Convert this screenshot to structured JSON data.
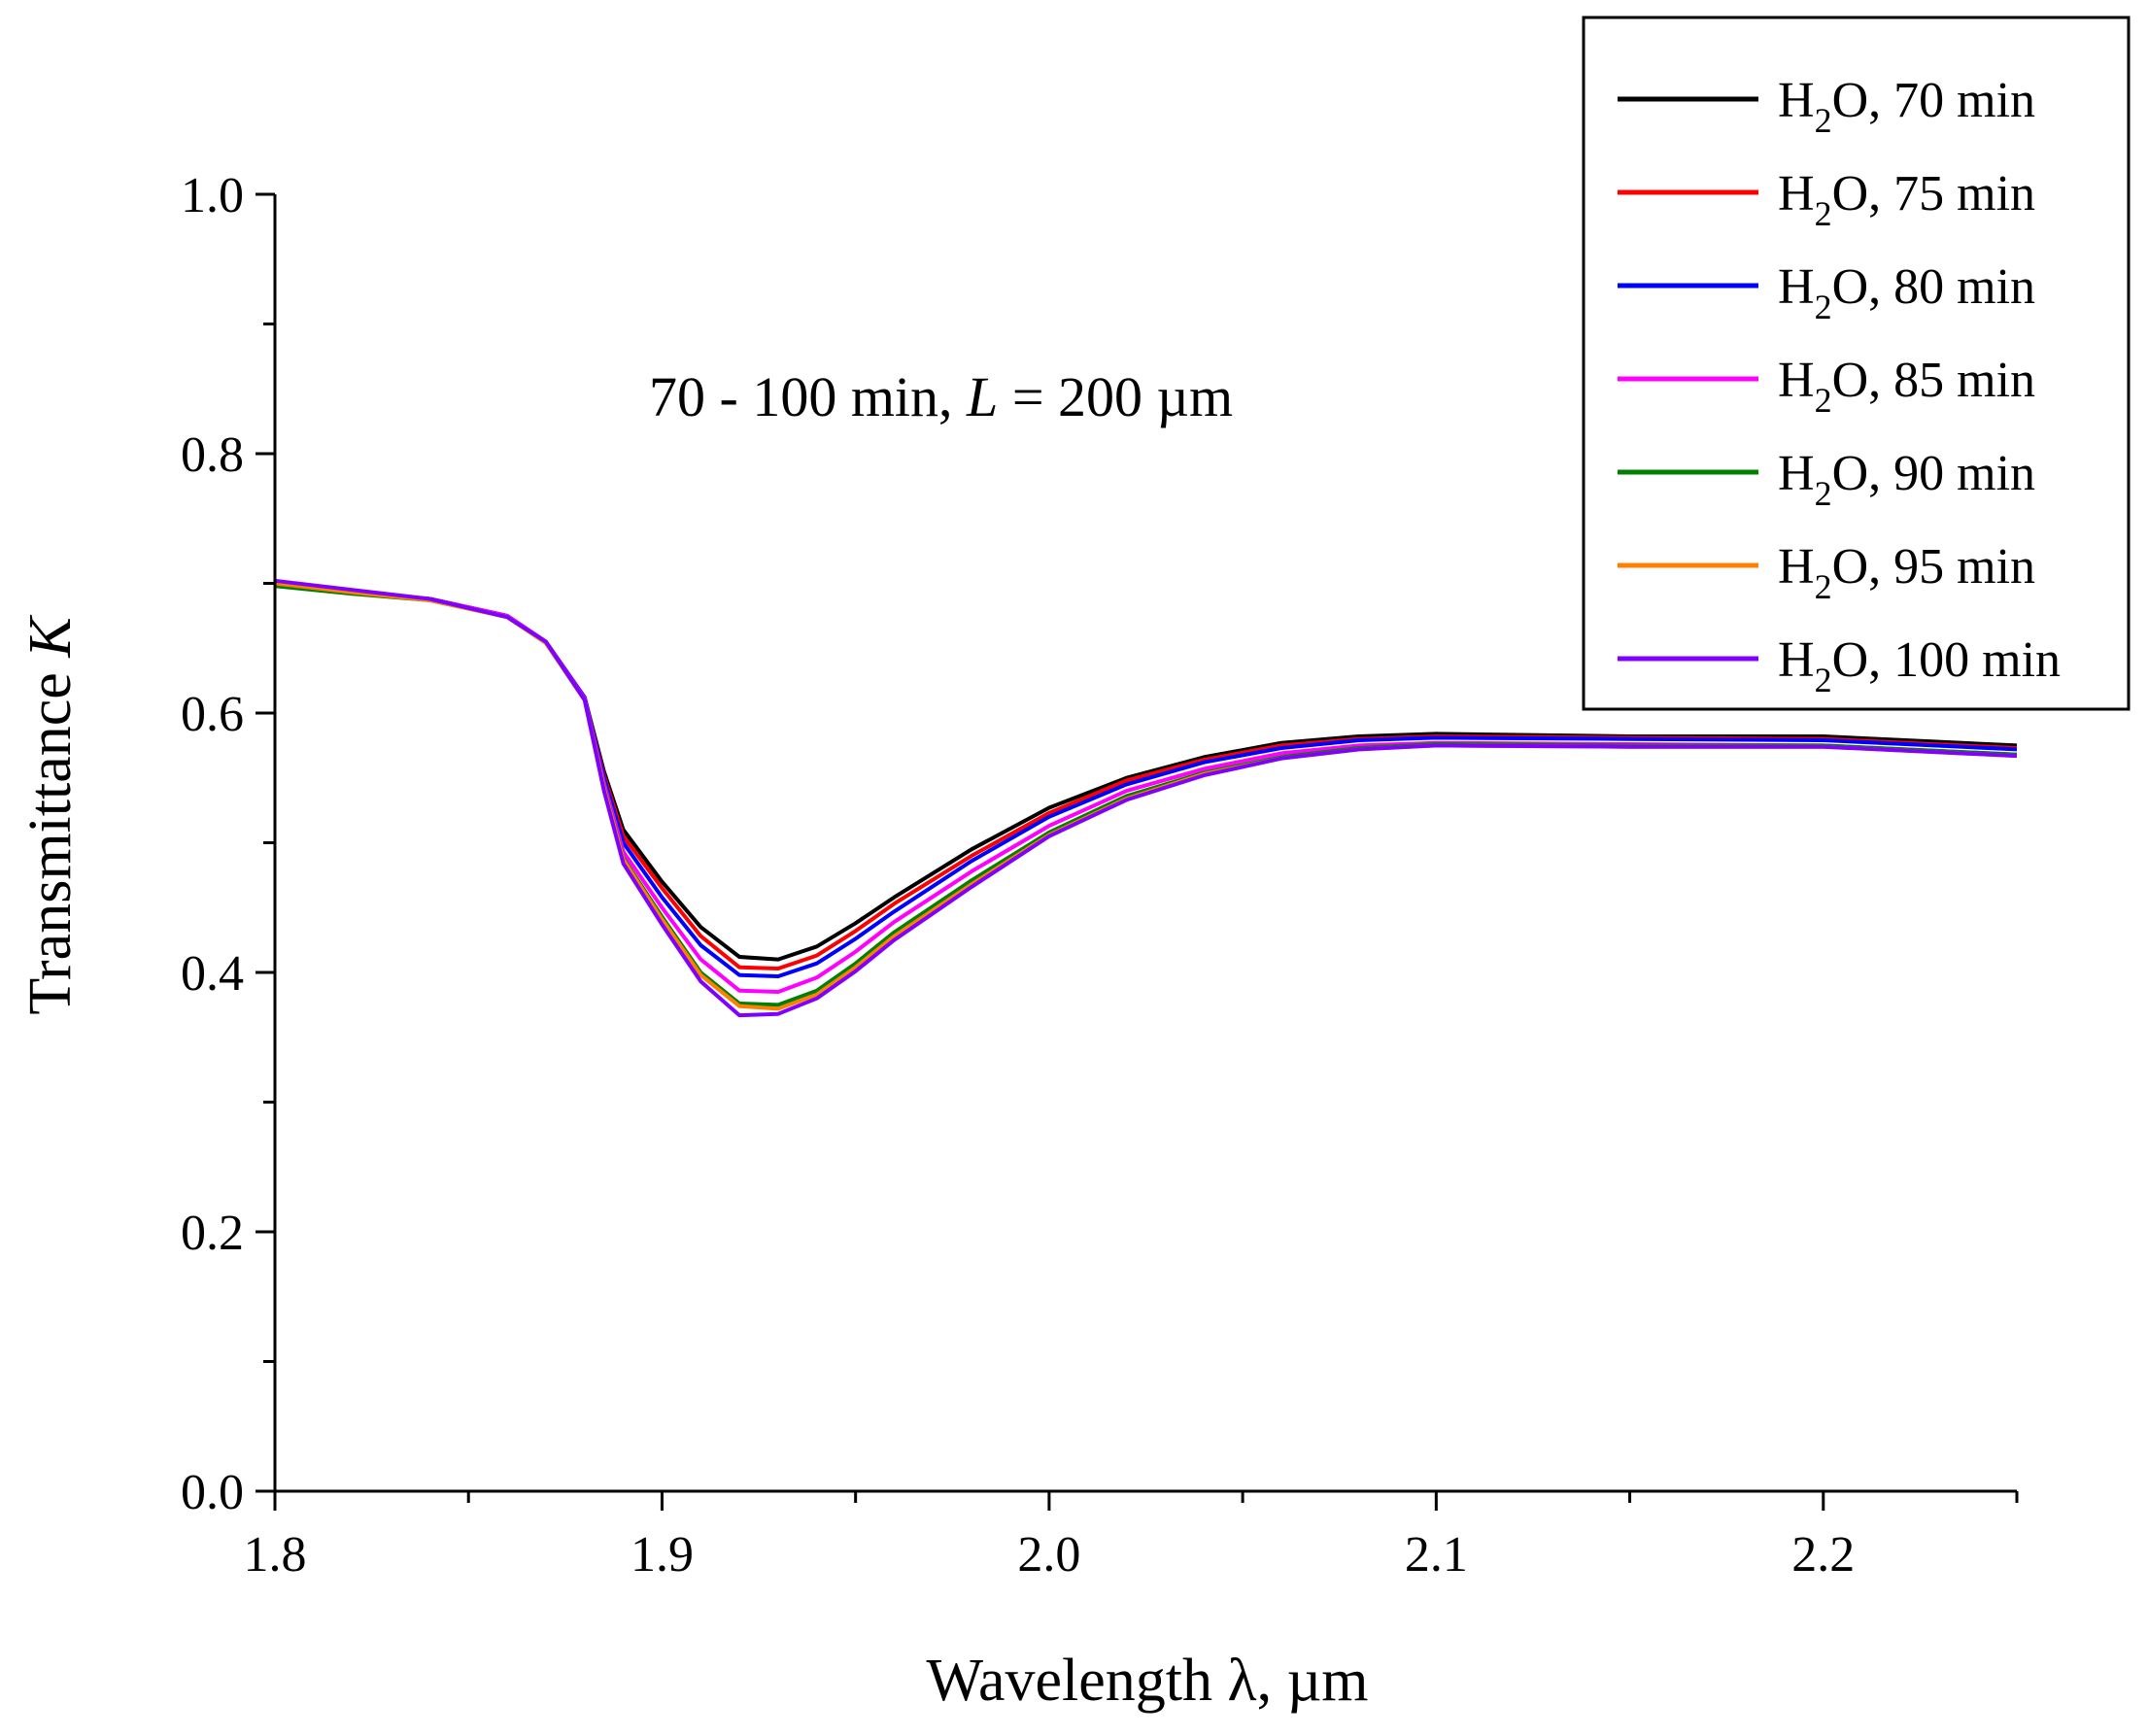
{
  "chart_data": {
    "type": "line",
    "title": "",
    "annotation": {
      "prefix": "70 - 100 min, ",
      "var": "L",
      "suffix": " = 200 µm"
    },
    "xlabel": "Wavelength λ, µm",
    "ylabel_prefix": "Transmittance ",
    "ylabel_var": "K",
    "xlim": [
      1.8,
      2.25
    ],
    "ylim": [
      0.0,
      1.0
    ],
    "xticks": [
      1.8,
      1.9,
      2.0,
      2.1,
      2.2
    ],
    "xtick_labels": [
      "1.8",
      "1.9",
      "2.0",
      "2.1",
      "2.2"
    ],
    "yticks": [
      0.0,
      0.2,
      0.4,
      0.6,
      0.8,
      1.0
    ],
    "ytick_labels": [
      "0.0",
      "0.2",
      "0.4",
      "0.6",
      "0.8",
      "1.0"
    ],
    "grid": false,
    "legend_position": "top-right",
    "x": [
      1.8,
      1.82,
      1.84,
      1.86,
      1.87,
      1.88,
      1.885,
      1.89,
      1.9,
      1.91,
      1.92,
      1.93,
      1.94,
      1.95,
      1.96,
      1.98,
      2.0,
      2.02,
      2.04,
      2.06,
      2.08,
      2.1,
      2.15,
      2.2,
      2.25
    ],
    "series": [
      {
        "name": "H2O, 70 min",
        "label_pre": "H",
        "label_sub": "2",
        "label_post": "O, 70 min",
        "color": "#000000",
        "values": [
          0.7,
          0.693,
          0.688,
          0.675,
          0.655,
          0.612,
          0.555,
          0.51,
          0.47,
          0.435,
          0.412,
          0.41,
          0.42,
          0.438,
          0.458,
          0.495,
          0.527,
          0.55,
          0.566,
          0.577,
          0.582,
          0.584,
          0.582,
          0.582,
          0.575
        ]
      },
      {
        "name": "H2O, 75 min",
        "label_pre": "H",
        "label_sub": "2",
        "label_post": "O, 75 min",
        "color": "#ff0000",
        "values": [
          0.7,
          0.693,
          0.688,
          0.675,
          0.655,
          0.612,
          0.552,
          0.505,
          0.465,
          0.428,
          0.404,
          0.403,
          0.413,
          0.432,
          0.453,
          0.49,
          0.523,
          0.548,
          0.564,
          0.575,
          0.58,
          0.582,
          0.581,
          0.58,
          0.573
        ]
      },
      {
        "name": "H2O, 80 min",
        "label_pre": "H",
        "label_sub": "2",
        "label_post": "O, 80 min",
        "color": "#0000ff",
        "values": [
          0.7,
          0.693,
          0.688,
          0.675,
          0.655,
          0.612,
          0.55,
          0.5,
          0.458,
          0.421,
          0.398,
          0.397,
          0.407,
          0.426,
          0.447,
          0.486,
          0.52,
          0.545,
          0.562,
          0.573,
          0.579,
          0.581,
          0.58,
          0.579,
          0.572
        ]
      },
      {
        "name": "H2O, 85 min",
        "label_pre": "H",
        "label_sub": "2",
        "label_post": "O, 85 min",
        "color": "#ff00ff",
        "values": [
          0.7,
          0.693,
          0.688,
          0.675,
          0.655,
          0.611,
          0.546,
          0.493,
          0.45,
          0.41,
          0.386,
          0.385,
          0.396,
          0.416,
          0.439,
          0.478,
          0.513,
          0.54,
          0.557,
          0.569,
          0.575,
          0.577,
          0.576,
          0.575,
          0.568
        ]
      },
      {
        "name": "H2O, 90 min",
        "label_pre": "H",
        "label_sub": "2",
        "label_post": "O, 90 min",
        "color": "#008000",
        "values": [
          0.698,
          0.692,
          0.687,
          0.674,
          0.654,
          0.61,
          0.543,
          0.488,
          0.443,
          0.4,
          0.376,
          0.375,
          0.386,
          0.407,
          0.431,
          0.471,
          0.508,
          0.536,
          0.554,
          0.566,
          0.573,
          0.576,
          0.575,
          0.575,
          0.568
        ]
      },
      {
        "name": "H2O, 95 min",
        "label_pre": "H",
        "label_sub": "2",
        "label_post": "O, 95 min",
        "color": "#ff8000",
        "values": [
          0.7,
          0.693,
          0.687,
          0.674,
          0.654,
          0.61,
          0.542,
          0.487,
          0.441,
          0.398,
          0.374,
          0.372,
          0.383,
          0.404,
          0.428,
          0.468,
          0.506,
          0.534,
          0.553,
          0.565,
          0.572,
          0.575,
          0.574,
          0.574,
          0.567
        ]
      },
      {
        "name": "H2O, 100 min",
        "label_pre": "H",
        "label_sub": "2",
        "label_post": "O, 100 min",
        "color": "#8000ff",
        "values": [
          0.702,
          0.695,
          0.688,
          0.674,
          0.655,
          0.61,
          0.54,
          0.484,
          0.437,
          0.393,
          0.367,
          0.368,
          0.38,
          0.401,
          0.425,
          0.466,
          0.505,
          0.533,
          0.552,
          0.565,
          0.572,
          0.575,
          0.574,
          0.574,
          0.567
        ]
      }
    ]
  }
}
